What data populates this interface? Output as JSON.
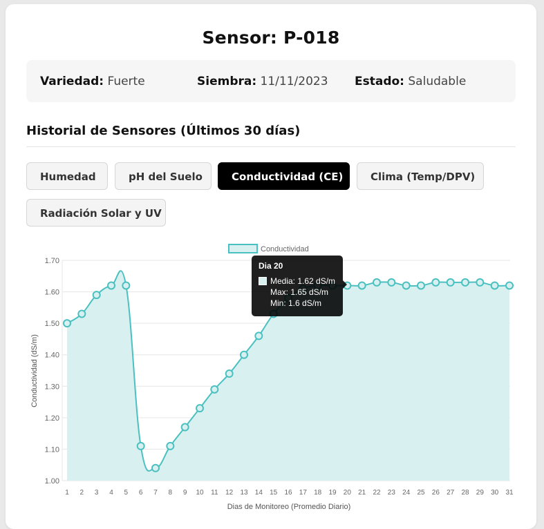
{
  "header": {
    "title": "Sensor: P-018"
  },
  "info": [
    {
      "label": "Variedad:",
      "value": "Fuerte"
    },
    {
      "label": "Siembra:",
      "value": "11/11/2023"
    },
    {
      "label": "Estado:",
      "value": "Saludable"
    }
  ],
  "section_title": "Historial de Sensores (Últimos 30 días)",
  "tabs": [
    {
      "label": "Humedad",
      "active": false
    },
    {
      "label": "pH del Suelo",
      "active": false
    },
    {
      "label": "Conductividad (CE)",
      "active": true
    },
    {
      "label": "Clima (Temp/DPV)",
      "active": false
    },
    {
      "label": "Radiación Solar y UV",
      "active": false
    }
  ],
  "colors": {
    "line": "#4bc0c0",
    "fill": "#d8f0f0",
    "active_tab": "#000000"
  },
  "tooltip": {
    "title": "Dia 20",
    "lines": [
      "Media: 1.62 dS/m",
      "Max: 1.65 dS/m",
      "Min: 1.6 dS/m"
    ]
  },
  "chart_data": {
    "type": "area",
    "x": [
      1,
      2,
      3,
      4,
      5,
      6,
      7,
      8,
      9,
      10,
      11,
      12,
      13,
      14,
      15,
      16,
      17,
      18,
      19,
      20,
      21,
      22,
      23,
      24,
      25,
      26,
      27,
      28,
      29,
      30,
      31
    ],
    "series": [
      {
        "name": "Conductividad",
        "values": [
          1.5,
          1.53,
          1.59,
          1.62,
          1.62,
          1.11,
          1.04,
          1.11,
          1.17,
          1.23,
          1.29,
          1.34,
          1.4,
          1.46,
          1.53,
          1.58,
          1.61,
          1.62,
          1.62,
          1.62,
          1.62,
          1.63,
          1.63,
          1.62,
          1.62,
          1.63,
          1.63,
          1.63,
          1.63,
          1.62,
          1.62
        ]
      }
    ],
    "xlabel": "Dias de Monitoreo (Promedio Diario)",
    "ylabel": "Conductividad (dS/m)",
    "ylim": [
      1.0,
      1.7
    ],
    "yticks": [
      "1.00",
      "1.10",
      "1.20",
      "1.30",
      "1.40",
      "1.50",
      "1.60",
      "1.70"
    ],
    "grid": true,
    "legend": "top"
  }
}
